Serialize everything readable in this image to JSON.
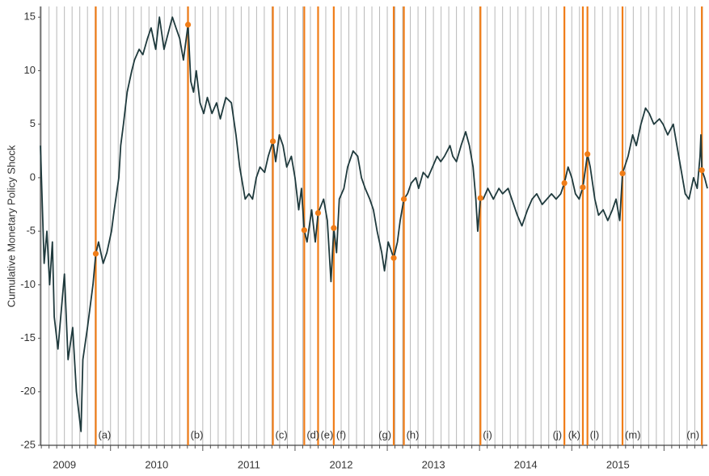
{
  "chart_data": {
    "type": "line",
    "y_label": "Cumulative Monetary Policy Shock",
    "xlim": [
      2009.24,
      2016.47
    ],
    "ylim": [
      -25,
      16
    ],
    "yticks": [
      15,
      10,
      5,
      0,
      -5,
      -10,
      -15,
      -20,
      -25
    ],
    "xticks": [
      {
        "value": 2009.5,
        "label": "2009"
      },
      {
        "value": 2010.5,
        "label": "2010"
      },
      {
        "value": 2011.5,
        "label": "2011"
      },
      {
        "value": 2012.5,
        "label": "2012"
      },
      {
        "value": 2013.5,
        "label": "2013"
      },
      {
        "value": 2014.5,
        "label": "2014"
      },
      {
        "value": 2015.5,
        "label": "2015"
      }
    ],
    "grid": "monthly",
    "event_color": "#f07d18",
    "series": [
      {
        "color": "#1f3a3d",
        "x": [
          2009.24,
          2009.28,
          2009.31,
          2009.34,
          2009.37,
          2009.39,
          2009.43,
          2009.5,
          2009.54,
          2009.59,
          2009.63,
          2009.68,
          2009.7,
          2009.75,
          2009.78,
          2009.81,
          2009.84,
          2009.87,
          2009.92,
          2009.96,
          2010.01,
          2010.04,
          2010.09,
          2010.11,
          2010.14,
          2010.18,
          2010.23,
          2010.26,
          2010.31,
          2010.35,
          2010.4,
          2010.44,
          2010.49,
          2010.53,
          2010.58,
          2010.61,
          2010.67,
          2010.71,
          2010.75,
          2010.79,
          2010.84,
          2010.87,
          2010.9,
          2010.93,
          2010.97,
          2011.01,
          2011.05,
          2011.1,
          2011.15,
          2011.19,
          2011.25,
          2011.31,
          2011.36,
          2011.4,
          2011.46,
          2011.5,
          2011.54,
          2011.58,
          2011.62,
          2011.67,
          2011.71,
          2011.76,
          2011.79,
          2011.83,
          2011.87,
          2011.91,
          2011.96,
          2012.0,
          2012.04,
          2012.07,
          2012.1,
          2012.13,
          2012.18,
          2012.22,
          2012.25,
          2012.31,
          2012.35,
          2012.39,
          2012.42,
          2012.45,
          2012.48,
          2012.53,
          2012.57,
          2012.63,
          2012.68,
          2012.72,
          2012.76,
          2012.81,
          2012.85,
          2012.89,
          2012.94,
          2012.97,
          2013.01,
          2013.07,
          2013.11,
          2013.14,
          2013.18,
          2013.22,
          2013.26,
          2013.31,
          2013.34,
          2013.39,
          2013.44,
          2013.49,
          2013.54,
          2013.58,
          2013.62,
          2013.68,
          2013.71,
          2013.75,
          2013.8,
          2013.85,
          2013.89,
          2013.93,
          2013.96,
          2013.98,
          2014.01,
          2014.04,
          2014.09,
          2014.15,
          2014.21,
          2014.25,
          2014.31,
          2014.35,
          2014.41,
          2014.46,
          2014.52,
          2014.57,
          2014.62,
          2014.68,
          2014.73,
          2014.78,
          2014.83,
          2014.88,
          2014.92,
          2014.96,
          2015.0,
          2015.04,
          2015.08,
          2015.12,
          2015.17,
          2015.2,
          2015.25,
          2015.29,
          2015.34,
          2015.39,
          2015.44,
          2015.48,
          2015.52,
          2015.55,
          2015.61,
          2015.66,
          2015.7,
          2015.75,
          2015.8,
          2015.84,
          2015.89,
          2015.95,
          2015.99,
          2016.04,
          2016.1,
          2016.14,
          2016.18,
          2016.23,
          2016.27,
          2016.32,
          2016.36,
          2016.39,
          2016.4,
          2016.41,
          2016.44,
          2016.47
        ],
        "values": [
          3,
          -8,
          -5,
          -10,
          -6,
          -13,
          -16,
          -9,
          -17,
          -14,
          -20,
          -23.7,
          -17,
          -14,
          -12,
          -10,
          -7.1,
          -6,
          -8,
          -7,
          -5,
          -3,
          0,
          3,
          5,
          8,
          10,
          11,
          12,
          11.5,
          13,
          14,
          12,
          15,
          12,
          13,
          15,
          14,
          13,
          11,
          14.3,
          9,
          8,
          10,
          7,
          6,
          7.5,
          6,
          7,
          5.5,
          7.5,
          7,
          4,
          1,
          -2,
          -1.5,
          -2,
          0,
          1,
          0.5,
          2,
          3.4,
          1.5,
          4,
          3,
          1,
          2,
          0,
          -3,
          -1,
          -4.9,
          -6,
          -3,
          -6,
          -3.3,
          -2,
          -4,
          -9.7,
          -4.7,
          -7,
          -2,
          -1,
          1,
          2.5,
          2,
          0,
          -1,
          -2,
          -3,
          -5,
          -7,
          -8.7,
          -6,
          -7.5,
          -6,
          -4,
          -2,
          -1.5,
          -0.5,
          0,
          -1,
          0.5,
          0,
          1,
          2,
          1.5,
          2,
          3,
          2,
          1.5,
          3,
          4.3,
          3,
          1,
          -2,
          -5,
          -1.9,
          -2,
          -1,
          -2,
          -1,
          -1.5,
          -1,
          -2,
          -3.5,
          -4.5,
          -3,
          -2,
          -1.5,
          -2.5,
          -2,
          -1.5,
          -2,
          -1.5,
          -0.5,
          1,
          0,
          -1.5,
          -2,
          -0.9,
          2.2,
          1,
          -2,
          -3.5,
          -3,
          -4,
          -3,
          -2,
          -4,
          0.4,
          2,
          4,
          3,
          5,
          6.5,
          6,
          5,
          5.5,
          5,
          4,
          5,
          3,
          1,
          -1.5,
          -2,
          0,
          -1,
          2,
          4,
          0.7,
          0,
          -1
        ]
      }
    ],
    "events": [
      {
        "label": "(a)",
        "x": 2009.84,
        "value": -7.1
      },
      {
        "label": "(b)",
        "x": 2010.84,
        "value": 14.3
      },
      {
        "label": "(c)",
        "x": 2011.76,
        "value": 3.4
      },
      {
        "label": "(d)",
        "x": 2012.1,
        "value": -4.9
      },
      {
        "label": "(e)",
        "x": 2012.25,
        "value": -3.3
      },
      {
        "label": "(f)",
        "x": 2012.42,
        "value": -4.7
      },
      {
        "label": "(g)",
        "x": 2013.07,
        "value": -7.5
      },
      {
        "label": "(h)",
        "x": 2013.18,
        "value": -2
      },
      {
        "label": "(i)",
        "x": 2014.01,
        "value": -1.9
      },
      {
        "label": "(j)",
        "x": 2014.92,
        "value": -0.5
      },
      {
        "label": "(k)",
        "x": 2015.12,
        "value": -0.9
      },
      {
        "label": "(l)",
        "x": 2015.17,
        "value": 2.2
      },
      {
        "label": "(m)",
        "x": 2015.55,
        "value": 0.4
      },
      {
        "label": "(n)",
        "x": 2016.41,
        "value": 0.7
      }
    ]
  }
}
